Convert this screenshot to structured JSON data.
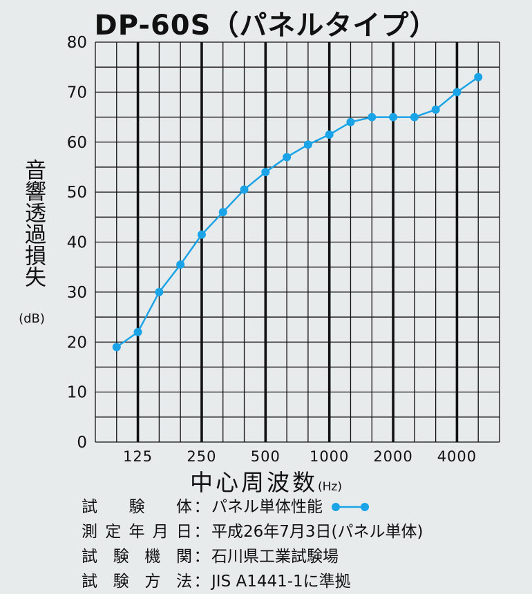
{
  "chart_data": {
    "type": "line",
    "title": "DP-60S（パネルタイプ）",
    "ylabel": "音響透過損失",
    "yunit": "(dB)",
    "xlabel": "中心周波数",
    "xunit": "(Hz)",
    "ylim": [
      0,
      80
    ],
    "yticks": [
      0,
      10,
      20,
      30,
      40,
      50,
      60,
      70,
      80
    ],
    "x_tick_labels": [
      "125",
      "250",
      "500",
      "1000",
      "2000",
      "4000"
    ],
    "grid": true,
    "series": [
      {
        "name": "パネル単体性能",
        "color": "#1aa3e6",
        "x": [
          100,
          125,
          160,
          200,
          250,
          315,
          400,
          500,
          630,
          800,
          1000,
          1250,
          1600,
          2000,
          2500,
          3150,
          4000,
          5000
        ],
        "values": [
          19,
          22,
          30,
          35.5,
          41.5,
          46,
          50.5,
          54,
          57,
          59.5,
          61.5,
          64,
          65,
          65,
          65,
          66.5,
          70,
          73
        ]
      }
    ]
  },
  "info": [
    {
      "label": "試験体",
      "value": "パネル単体性能"
    },
    {
      "label": "測定年月日",
      "value": "平成26年7月3日(パネル単体)"
    },
    {
      "label": "試験機関",
      "value": "石川県工業試験場"
    },
    {
      "label": "試験方法",
      "value": "JIS A1441-1に準拠"
    }
  ],
  "colon": "："
}
